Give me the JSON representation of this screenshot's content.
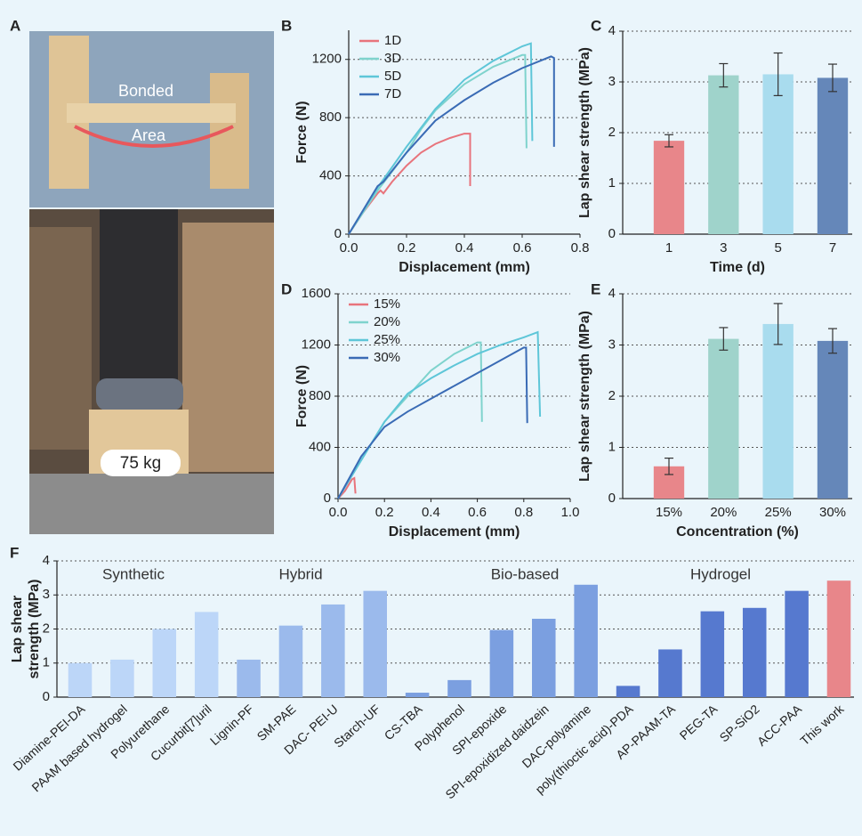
{
  "photo": {
    "panel": "A",
    "labels": [
      "Bonded",
      "Area",
      "75 kg"
    ]
  },
  "chart_data": [
    {
      "type": "line",
      "panel": "B",
      "xlabel": "Displacement (mm)",
      "ylabel": "Force (N)",
      "xlim": [
        0,
        0.8
      ],
      "xticks": [
        {
          "value": 0,
          "label": "0.0"
        },
        0.2,
        0.4,
        0.6,
        0.8
      ],
      "ylim": [
        0,
        1400
      ],
      "yticks": [
        0,
        400,
        800,
        1200
      ],
      "grid": true,
      "legend": "top-left",
      "series": [
        {
          "name": "1D",
          "color": "#e8747c",
          "x": [
            0,
            0.05,
            0.1,
            0.11,
            0.12,
            0.15,
            0.2,
            0.25,
            0.3,
            0.35,
            0.4,
            0.42,
            0.42
          ],
          "values": [
            0,
            150,
            280,
            300,
            280,
            360,
            470,
            560,
            620,
            660,
            690,
            690,
            330
          ]
        },
        {
          "name": "3D",
          "color": "#7fd3cd",
          "x": [
            0,
            0.1,
            0.2,
            0.25,
            0.3,
            0.4,
            0.5,
            0.6,
            0.61,
            0.615
          ],
          "values": [
            0,
            300,
            560,
            720,
            850,
            1030,
            1150,
            1230,
            1230,
            590
          ]
        },
        {
          "name": "5D",
          "color": "#5ec6d8",
          "x": [
            0,
            0.1,
            0.2,
            0.3,
            0.4,
            0.5,
            0.6,
            0.63,
            0.635
          ],
          "values": [
            0,
            320,
            600,
            860,
            1060,
            1190,
            1290,
            1310,
            640
          ]
        },
        {
          "name": "7D",
          "color": "#3a6bb5",
          "x": [
            0,
            0.1,
            0.12,
            0.2,
            0.3,
            0.4,
            0.5,
            0.6,
            0.7,
            0.71,
            0.71
          ],
          "values": [
            0,
            330,
            360,
            560,
            780,
            920,
            1040,
            1140,
            1220,
            1210,
            600
          ]
        }
      ]
    },
    {
      "type": "bar",
      "panel": "C",
      "xlabel": "Time (d)",
      "ylabel": "Lap shear strength (MPa)",
      "categories": [
        "1",
        "3",
        "5",
        "7"
      ],
      "values": [
        1.84,
        3.13,
        3.15,
        3.08
      ],
      "errors": [
        0.12,
        0.23,
        0.42,
        0.27
      ],
      "colors": [
        "#e8868a",
        "#9fd3cb",
        "#a9dcee",
        "#6587b9"
      ],
      "ylim": [
        0,
        4
      ],
      "yticks": [
        0,
        1,
        2,
        3,
        4
      ],
      "grid": true
    },
    {
      "type": "line",
      "panel": "D",
      "xlabel": "Displacement (mm)",
      "ylabel": "Force (N)",
      "xlim": [
        0,
        1
      ],
      "xticks": [
        {
          "value": 0,
          "label": "0.0"
        },
        0.2,
        0.4,
        0.6,
        0.8,
        {
          "value": 1,
          "label": "1.0"
        }
      ],
      "ylim": [
        0,
        1600
      ],
      "yticks": [
        0,
        400,
        800,
        1200,
        1600
      ],
      "grid": true,
      "legend": "top-left",
      "series": [
        {
          "name": "15%",
          "color": "#e8747c",
          "x": [
            0,
            0.03,
            0.06,
            0.07,
            0.075
          ],
          "values": [
            0,
            60,
            150,
            160,
            40
          ]
        },
        {
          "name": "20%",
          "color": "#7fd3cd",
          "x": [
            0,
            0.1,
            0.2,
            0.3,
            0.4,
            0.5,
            0.6,
            0.615,
            0.62
          ],
          "values": [
            0,
            300,
            600,
            800,
            1000,
            1130,
            1220,
            1220,
            600
          ]
        },
        {
          "name": "25%",
          "color": "#5ec6d8",
          "x": [
            0,
            0.1,
            0.2,
            0.3,
            0.4,
            0.5,
            0.6,
            0.7,
            0.8,
            0.86,
            0.87
          ],
          "values": [
            0,
            300,
            600,
            820,
            940,
            1040,
            1130,
            1200,
            1260,
            1300,
            640
          ]
        },
        {
          "name": "30%",
          "color": "#3a6bb5",
          "x": [
            0,
            0.1,
            0.2,
            0.3,
            0.4,
            0.5,
            0.6,
            0.7,
            0.8,
            0.81,
            0.815
          ],
          "values": [
            0,
            330,
            560,
            680,
            780,
            880,
            980,
            1080,
            1180,
            1180,
            590
          ]
        }
      ]
    },
    {
      "type": "bar",
      "panel": "E",
      "xlabel": "Concentration (%)",
      "ylabel": "Lap shear strength (MPa)",
      "categories": [
        "15%",
        "20%",
        "25%",
        "30%"
      ],
      "values": [
        0.63,
        3.12,
        3.41,
        3.08
      ],
      "errors": [
        0.16,
        0.22,
        0.4,
        0.24
      ],
      "colors": [
        "#e8868a",
        "#9fd3cb",
        "#a9dcee",
        "#6587b9"
      ],
      "ylim": [
        0,
        4
      ],
      "yticks": [
        0,
        1,
        2,
        3,
        4
      ],
      "grid": true
    },
    {
      "type": "bar",
      "panel": "F",
      "ylabel": [
        "Lap shear",
        "strength (MPa)"
      ],
      "groups": [
        "Synthetic",
        "Hybrid",
        "Bio-based",
        "Hydrogel"
      ],
      "categories": [
        "Diamine-PEI-DA",
        "PAAM based hydrogel",
        "Polyurethane",
        "Cucurbit[7]uril",
        "Lignin-PF",
        "SM-PAE",
        "DAC- PEI-U",
        "Starch-UF",
        "CS-TBA",
        "Polyphenol",
        "SPI-epoxide",
        "SPI-epoxidized daidzein",
        "DAC-polyamine",
        "poly(thioctic acid)-PDA",
        "AP-PAAM-TA",
        "PEG-TA",
        "SP-SiO2",
        "ACC-PAA",
        "This work"
      ],
      "values": [
        1.0,
        1.1,
        2.0,
        2.5,
        1.1,
        2.1,
        2.72,
        3.12,
        0.13,
        0.5,
        1.97,
        2.3,
        3.3,
        0.33,
        1.4,
        2.52,
        2.62,
        3.12,
        3.42
      ],
      "colors": [
        "#bcd6f8",
        "#bcd6f8",
        "#bcd6f8",
        "#bcd6f8",
        "#9bbaec",
        "#9bbaec",
        "#9bbaec",
        "#9bbaec",
        "#7b9fe0",
        "#7b9fe0",
        "#7b9fe0",
        "#7b9fe0",
        "#7b9fe0",
        "#5679cf",
        "#5679cf",
        "#5679cf",
        "#5679cf",
        "#5679cf",
        "#e8868a"
      ],
      "ylim": [
        0,
        4
      ],
      "yticks": [
        0,
        1,
        2,
        3,
        4
      ],
      "grid": true
    }
  ]
}
